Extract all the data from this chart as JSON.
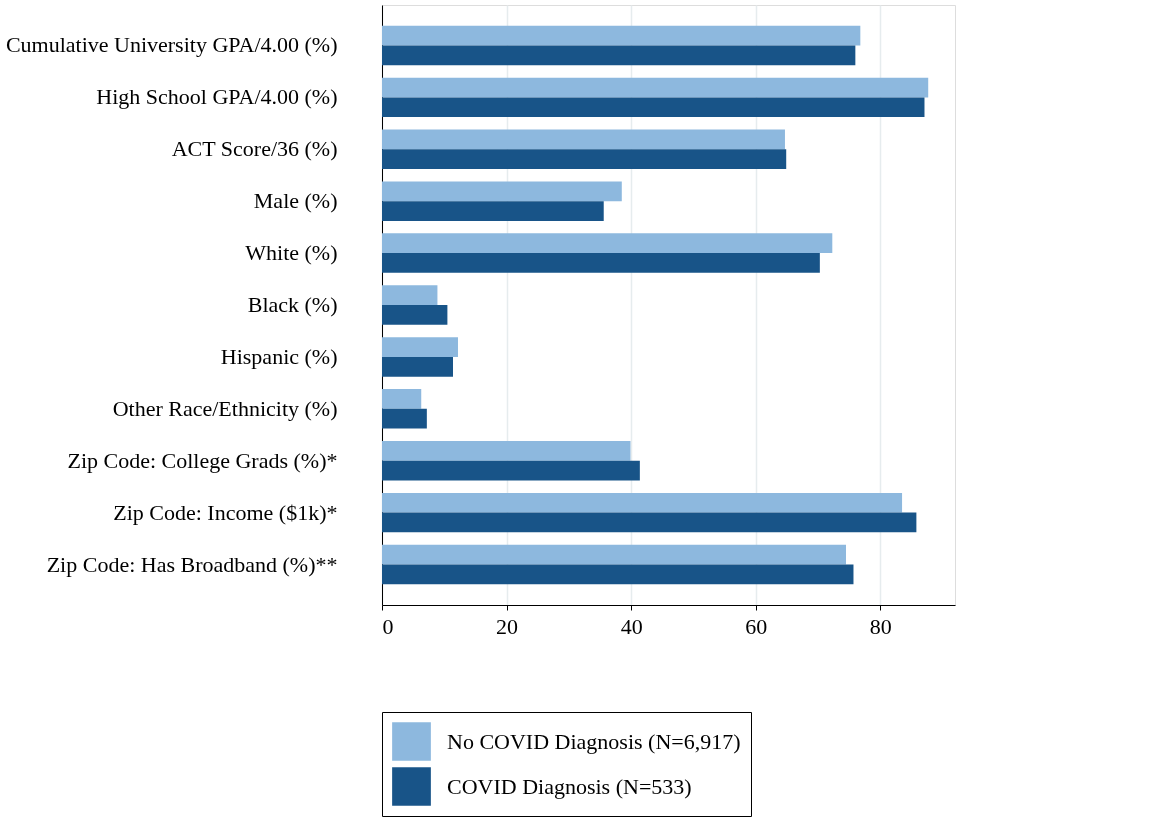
{
  "chart_data": {
    "type": "bar",
    "orientation": "horizontal",
    "categories": [
      "Cumulative University GPA/4.00 (%)",
      "High School GPA/4.00 (%)",
      "ACT Score/36 (%)",
      "Male (%)",
      "White (%)",
      "Black (%)",
      "Hispanic (%)",
      "Other Race/Ethnicity (%)",
      "Zip Code: College Grads (%)*",
      "Zip Code: Income ($1k)*",
      "Zip Code: Has Broadband (%)**"
    ],
    "series": [
      {
        "name": "No COVID Diagnosis (N=6,917)",
        "color": "#8db8de",
        "values": [
          76.8,
          87.7,
          64.7,
          38.5,
          72.3,
          8.9,
          12.2,
          6.3,
          39.9,
          83.5,
          74.5
        ]
      },
      {
        "name": "COVID Diagnosis (N=533)",
        "color": "#185488",
        "values": [
          76.0,
          87.1,
          64.9,
          35.6,
          70.3,
          10.5,
          11.4,
          7.2,
          41.4,
          85.8,
          75.7
        ]
      }
    ],
    "xlim": [
      0,
      92
    ],
    "xticks": [
      0,
      20,
      40,
      60,
      80
    ],
    "grid": "x",
    "legend": "bottom"
  }
}
